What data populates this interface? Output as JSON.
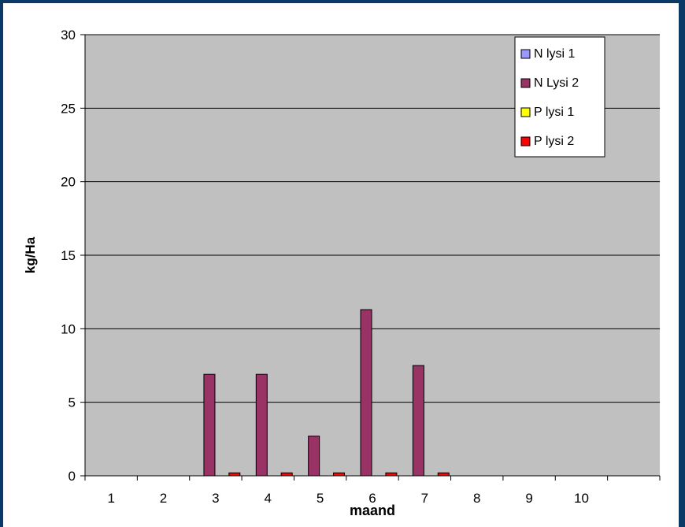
{
  "chart_data": {
    "type": "bar",
    "title": "",
    "xlabel": "maand",
    "ylabel": "kg/Ha",
    "ylim": [
      0,
      30
    ],
    "yticks": [
      0,
      5,
      10,
      15,
      20,
      25,
      30
    ],
    "grid": true,
    "legend_position": "top-right",
    "plot_background": "#c0c0c0",
    "categories": [
      "1",
      "2",
      "3",
      "4",
      "5",
      "6",
      "7",
      "8",
      "9",
      "10",
      ""
    ],
    "series": [
      {
        "name": "N lysi 1",
        "color": "#9999ff",
        "values": [
          0,
          0,
          0,
          0,
          0,
          0,
          0,
          0,
          0,
          0,
          0
        ]
      },
      {
        "name": "N Lysi 2",
        "color": "#993366",
        "values": [
          0,
          0,
          6.9,
          6.9,
          2.7,
          11.3,
          7.5,
          0,
          0,
          0,
          0
        ]
      },
      {
        "name": "P lysi 1",
        "color": "#ffff00",
        "values": [
          0,
          0,
          0,
          0,
          0,
          0,
          0,
          0,
          0,
          0,
          0
        ]
      },
      {
        "name": "P lysi 2",
        "color": "#ff0000",
        "values": [
          0,
          0,
          0.2,
          0.2,
          0.2,
          0.2,
          0.2,
          0,
          0,
          0,
          0
        ]
      }
    ]
  }
}
